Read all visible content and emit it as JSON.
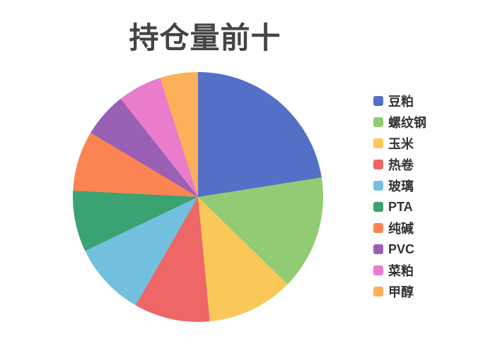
{
  "chart_data": {
    "type": "pie",
    "title": "持仓量前十",
    "categories": [
      "豆粕",
      "螺纹钢",
      "玉米",
      "热卷",
      "玻璃",
      "PTA",
      "纯碱",
      "PVC",
      "菜粕",
      "甲醇"
    ],
    "values": [
      22.5,
      14.8,
      11.2,
      9.8,
      9.6,
      7.9,
      7.8,
      5.8,
      5.7,
      4.9
    ],
    "values_note": "percent shares estimated from slice angles; no numeric labels shown in chart",
    "colors": [
      "#5470c6",
      "#91cc75",
      "#fac858",
      "#ee6666",
      "#73c0de",
      "#3ba272",
      "#fc8452",
      "#9a60b4",
      "#ea7ccc",
      "#fbb05a"
    ],
    "start_angle_deg": 0,
    "direction": "clockwise",
    "legend_position": "right",
    "labels_shown": false,
    "title_color": "#444444",
    "legend_text_color": "#333333",
    "background_color": "#ffffff"
  }
}
